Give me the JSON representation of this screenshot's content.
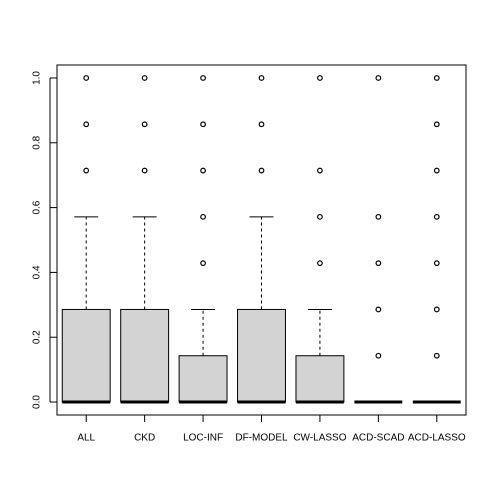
{
  "chart_data": {
    "type": "boxplot",
    "categories": [
      "ALL",
      "CKD",
      "LOC-INF",
      "DF-MODEL",
      "CW-LASSO",
      "ACD-SCAD",
      "ACD-LASSO"
    ],
    "boxes": [
      {
        "min": 0,
        "q1": 0,
        "median": 0,
        "q3": 0.2857,
        "max": 0.5714,
        "outliers": [
          0.7143,
          0.8571,
          1.0
        ]
      },
      {
        "min": 0,
        "q1": 0,
        "median": 0,
        "q3": 0.2857,
        "max": 0.5714,
        "outliers": [
          0.7143,
          0.8571,
          1.0
        ]
      },
      {
        "min": 0,
        "q1": 0,
        "median": 0,
        "q3": 0.1429,
        "max": 0.2857,
        "outliers": [
          0.4286,
          0.5714,
          0.7143,
          0.8571,
          1.0
        ]
      },
      {
        "min": 0,
        "q1": 0,
        "median": 0,
        "q3": 0.2857,
        "max": 0.5714,
        "outliers": [
          0.7143,
          0.8571,
          1.0
        ]
      },
      {
        "min": 0,
        "q1": 0,
        "median": 0,
        "q3": 0.1429,
        "max": 0.2857,
        "outliers": [
          0.4286,
          0.5714,
          0.7143,
          1.0
        ]
      },
      {
        "min": 0,
        "q1": 0,
        "median": 0,
        "q3": 0,
        "max": 0,
        "outliers": [
          0.1429,
          0.2857,
          0.4286,
          0.5714,
          1.0
        ]
      },
      {
        "min": 0,
        "q1": 0,
        "median": 0,
        "q3": 0,
        "max": 0,
        "outliers": [
          0.1429,
          0.2857,
          0.4286,
          0.5714,
          0.7143,
          0.8571,
          1.0
        ]
      }
    ],
    "color": "#d3d3d3",
    "ylim": [
      -0.04,
      1.04
    ],
    "yticks": [
      {
        "value": 0,
        "label": "0.0"
      },
      0.2,
      0.4,
      0.6,
      0.8,
      {
        "value": 1,
        "label": "1.0"
      }
    ]
  }
}
